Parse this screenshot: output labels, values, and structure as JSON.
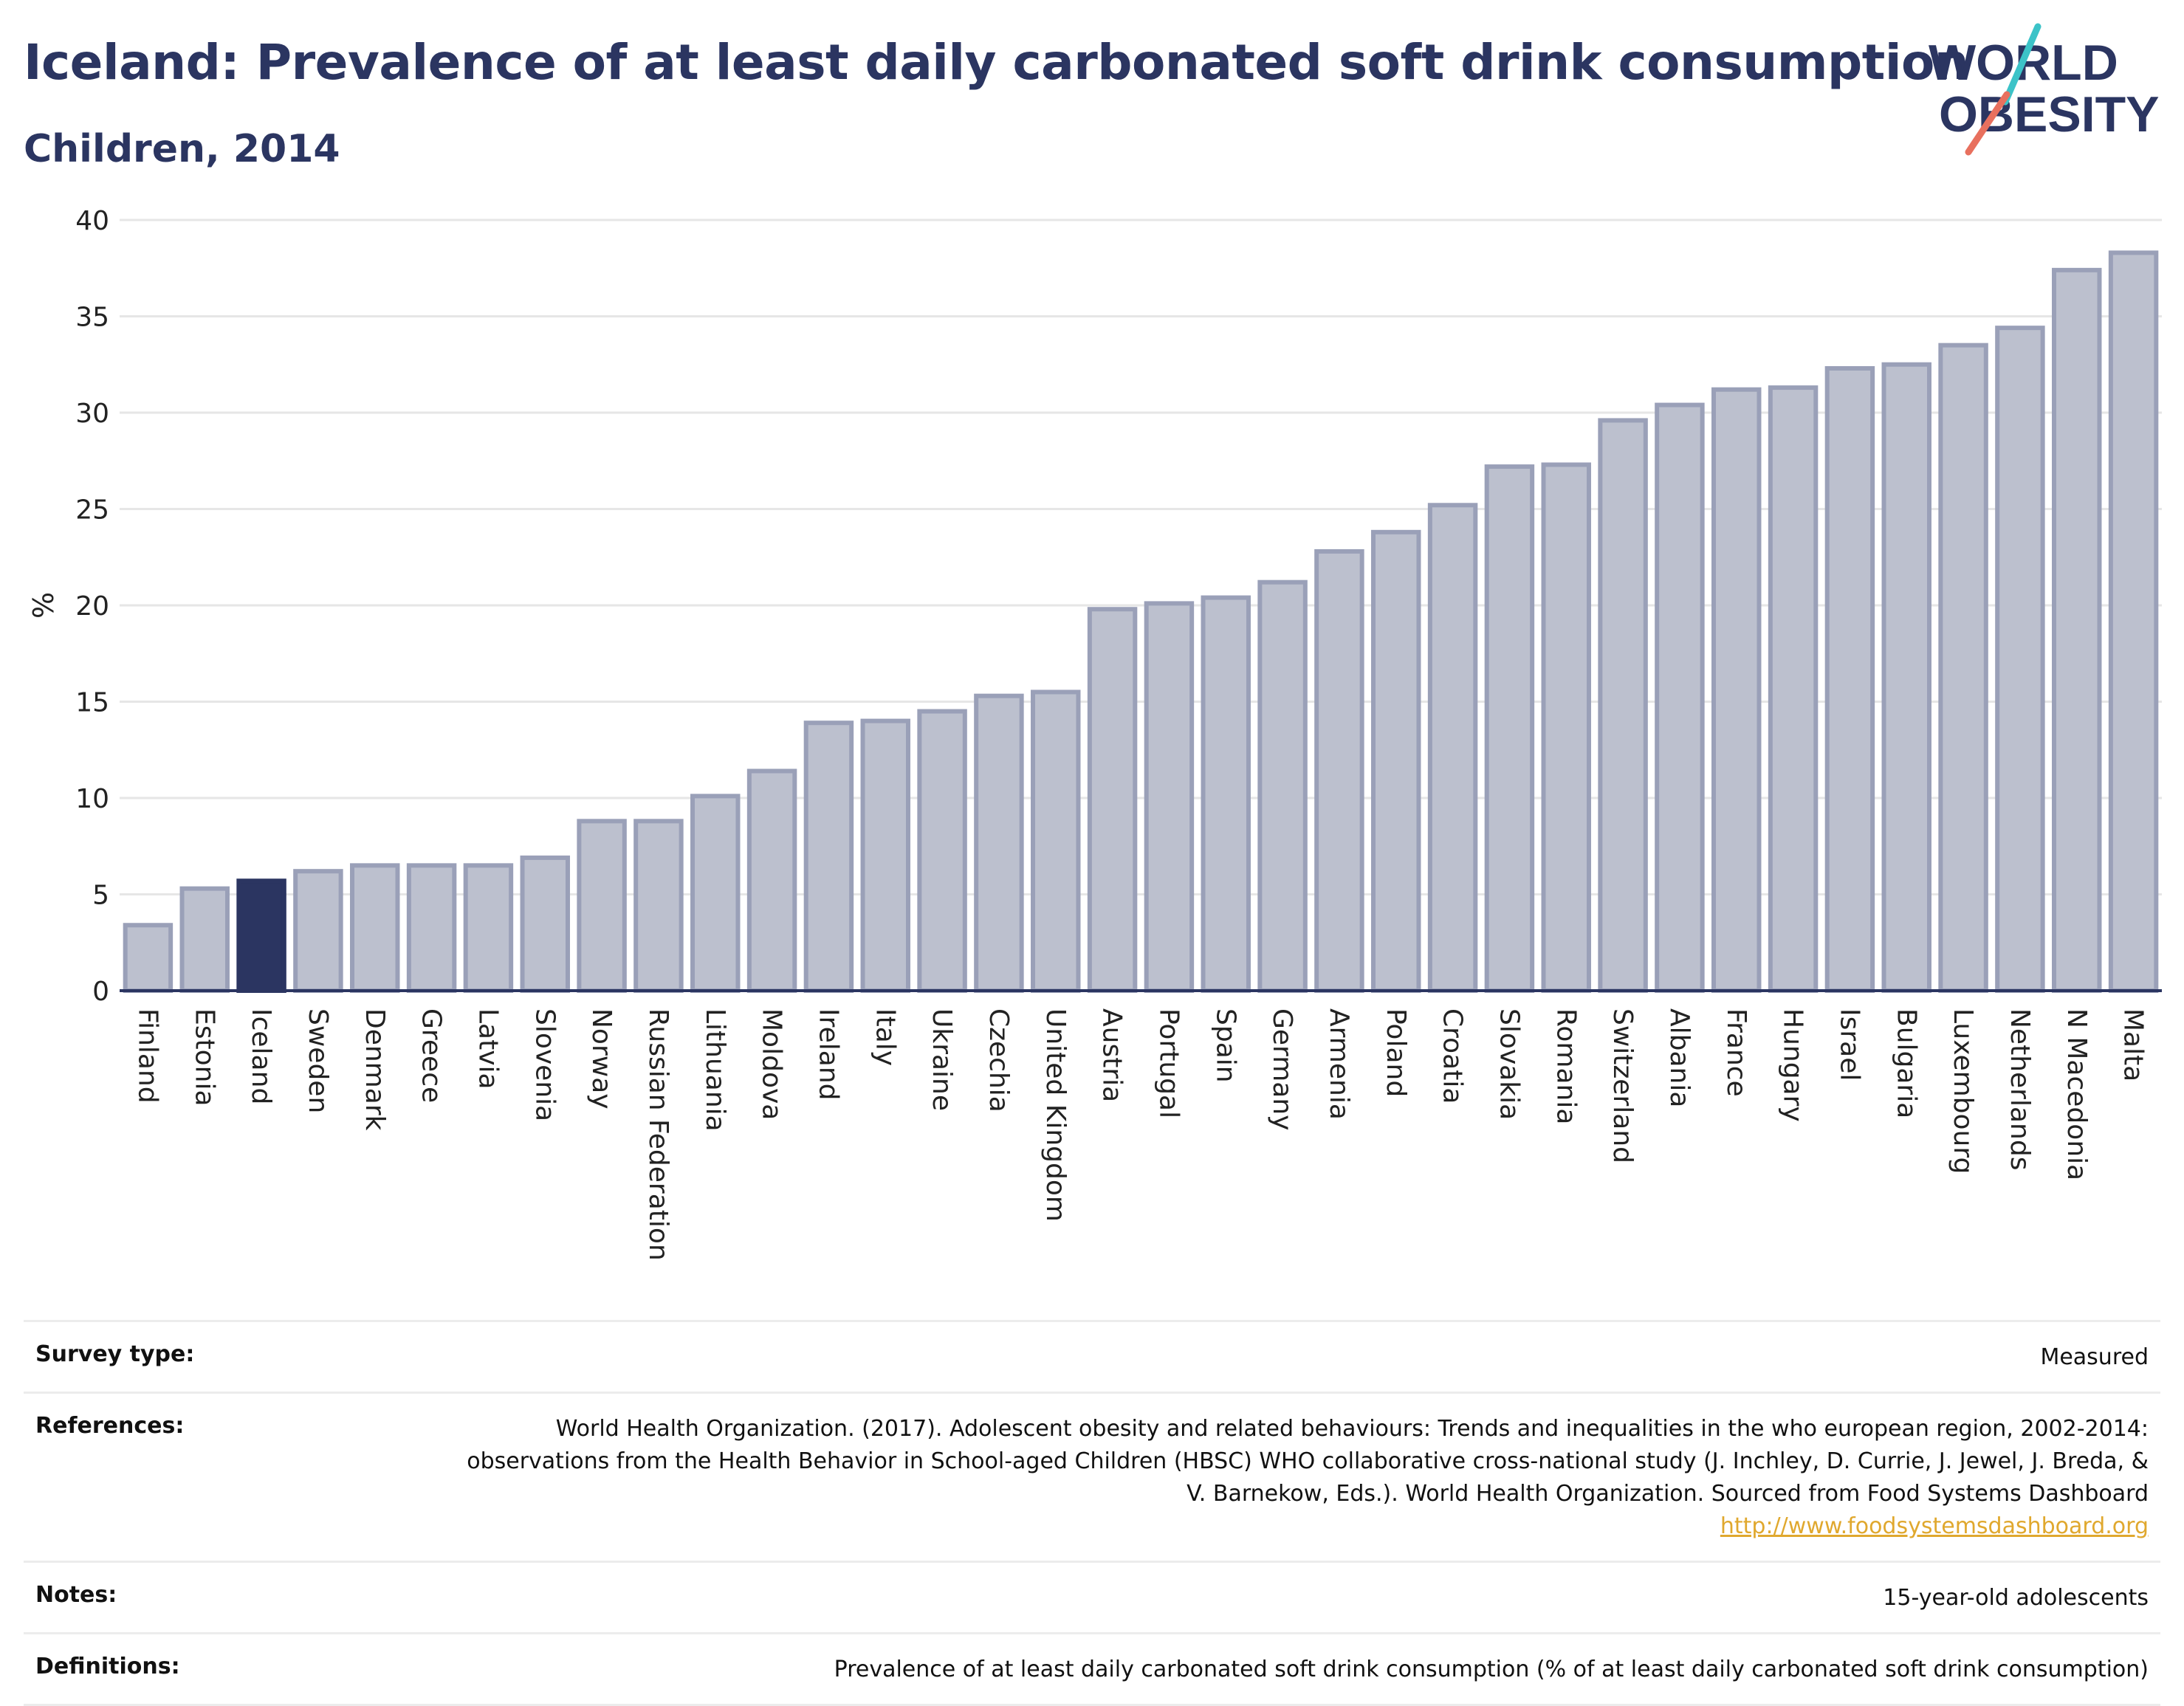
{
  "header": {
    "title": "Iceland: Prevalence of at least daily carbonated soft drink consumption",
    "subtitle": "Children, 2014"
  },
  "logo": {
    "line1": "WORLD",
    "line2": "OBESITY"
  },
  "colors": {
    "highlight": "#2b3561",
    "bar": "#bcc0ce",
    "bar_border": "#9aa0b8",
    "grid": "#e6e6e6",
    "link": "#e0a82e"
  },
  "chart_data": {
    "type": "bar",
    "title": "Iceland: Prevalence of at least daily carbonated soft drink consumption",
    "subtitle": "Children, 2014",
    "xlabel": "",
    "ylabel": "%",
    "ylim": [
      0,
      40
    ],
    "yticks": [
      0,
      5,
      10,
      15,
      20,
      25,
      30,
      35,
      40
    ],
    "grid": true,
    "highlight": "Iceland",
    "categories": [
      "Finland",
      "Estonia",
      "Iceland",
      "Sweden",
      "Denmark",
      "Greece",
      "Latvia",
      "Slovenia",
      "Norway",
      "Russian Federation",
      "Lithuania",
      "Moldova",
      "Ireland",
      "Italy",
      "Ukraine",
      "Czechia",
      "United Kingdom",
      "Austria",
      "Portugal",
      "Spain",
      "Germany",
      "Armenia",
      "Poland",
      "Croatia",
      "Slovakia",
      "Romania",
      "Switzerland",
      "Albania",
      "France",
      "Hungary",
      "Israel",
      "Bulgaria",
      "Luxembourg",
      "Netherlands",
      "N Macedonia",
      "Malta"
    ],
    "values": [
      3.4,
      5.3,
      5.7,
      6.2,
      6.5,
      6.5,
      6.5,
      6.9,
      8.8,
      8.8,
      10.1,
      11.4,
      13.9,
      14.0,
      14.5,
      15.3,
      15.5,
      19.8,
      20.1,
      20.4,
      21.2,
      22.8,
      23.8,
      25.2,
      27.2,
      27.3,
      29.6,
      30.4,
      31.2,
      31.3,
      32.3,
      32.5,
      33.5,
      34.4,
      37.4,
      38.3
    ]
  },
  "meta": {
    "survey_type_label": "Survey type:",
    "survey_type_value": "Measured",
    "references_label": "References:",
    "references_value": "World Health Organization. (2017). Adolescent obesity and related behaviours: Trends and inequalities in the who european region, 2002-2014: observations from the Health Behavior in School-aged Children (HBSC) WHO collaborative cross-national study (J. Inchley, D. Currie, J. Jewel, J. Breda, & V. Barnekow, Eds.). World Health Organization. Sourced from Food Systems Dashboard",
    "references_link": "http://www.foodsystemsdashboard.org",
    "notes_label": "Notes:",
    "notes_value": "15-year-old adolescents",
    "definitions_label": "Definitions:",
    "definitions_value": "Prevalence of at least daily carbonated soft drink consumption (% of at least daily carbonated soft drink consumption)"
  }
}
